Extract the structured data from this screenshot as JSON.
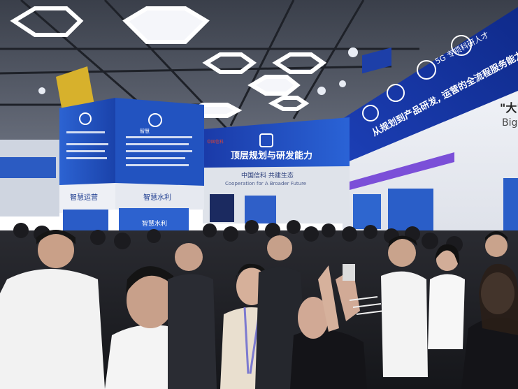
{
  "signs": {
    "center_banner": "顶层规划与研发能力",
    "center_sub_cn": "中国信科  共建生态",
    "center_sub_en": "Cooperation for A Broader Future",
    "right_banner_top": "5G 专项科研人才",
    "right_banner_main": "从规划到产品研发, 运营的全流程服务能力",
    "right_edge_big": "\"大\"",
    "right_edge_en": "Big",
    "left_tower_header": "智慧",
    "left_tower_panel": "智慧运营",
    "left_tower_panel_b": "智慧水利",
    "left_tower_card": "智慧水利",
    "left_logo": "中国信科"
  },
  "colors": {
    "ceiling": "#4c5260",
    "banner_blue": "#1b3fb0",
    "panel_blue": "#2459c8",
    "wall_white": "#e9ecf2",
    "crowd_dark": "#1f1f24"
  }
}
